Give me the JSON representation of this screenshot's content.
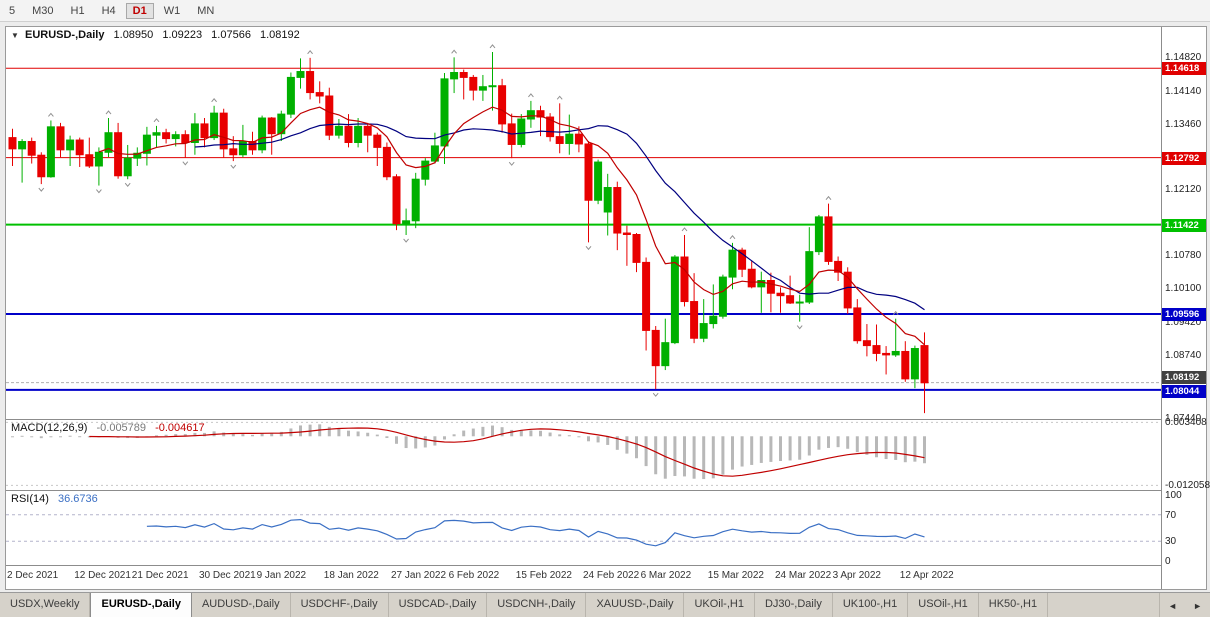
{
  "toolbar": {
    "timeframes": [
      {
        "label": "5",
        "active": false
      },
      {
        "label": "M30",
        "active": false
      },
      {
        "label": "H1",
        "active": false
      },
      {
        "label": "H4",
        "active": false
      },
      {
        "label": "D1",
        "active": true
      },
      {
        "label": "W1",
        "active": false
      },
      {
        "label": "MN",
        "active": false
      }
    ]
  },
  "chart_header": {
    "collapse_icon": "▼",
    "symbol": "EURUSD-,Daily",
    "open": "1.08950",
    "high": "1.09223",
    "low": "1.07566",
    "close": "1.08192"
  },
  "chart_data": {
    "type": "candlestick",
    "symbol": "EURUSD",
    "period": "Daily",
    "scale": {
      "p_max": 1.1546,
      "p_min": 1.0745
    },
    "colors": {
      "up": "#00b000",
      "down": "#e80000",
      "bg": "#ffffff",
      "ma_slow": "#000080",
      "ma_fast": "#c00000"
    },
    "y_ticks": [
      "1.14820",
      "1.14140",
      "1.13460",
      "1.12120",
      "1.10780",
      "1.10100",
      "1.09420",
      "1.08740",
      "1.07440"
    ],
    "levels": [
      {
        "price": 1.14618,
        "label": "1.14618",
        "color": "#e00000",
        "width": 1,
        "dy": 0
      },
      {
        "price": 1.12792,
        "label": "1.12792",
        "color": "#e00000",
        "width": 1,
        "dy": 0
      },
      {
        "price": 1.11422,
        "label": "1.11422",
        "color": "#00c000",
        "width": 2,
        "dy": 0
      },
      {
        "price": 1.09596,
        "label": "1.09596",
        "color": "#0000c8",
        "width": 2,
        "dy": 0
      },
      {
        "price": 1.08044,
        "label": "1.08044",
        "color": "#0000c8",
        "width": 2,
        "dy": 1
      }
    ],
    "current_price": {
      "price": 1.08192,
      "label": "1.08192",
      "bg": "#404040",
      "dy": -6
    },
    "moving_averages": [
      {
        "type": "sma",
        "period": 20,
        "color": "#000080"
      },
      {
        "type": "ema",
        "period": 10,
        "color": "#c00000"
      }
    ],
    "x_labels": [
      {
        "label": "2 Dec 2021",
        "index": 0
      },
      {
        "label": "12 Dec 2021",
        "index": 7
      },
      {
        "label": "21 Dec 2021",
        "index": 13
      },
      {
        "label": "30 Dec 2021",
        "index": 20
      },
      {
        "label": "9 Jan 2022",
        "index": 26
      },
      {
        "label": "18 Jan 2022",
        "index": 33
      },
      {
        "label": "27 Jan 2022",
        "index": 40
      },
      {
        "label": "6 Feb 2022",
        "index": 46
      },
      {
        "label": "15 Feb 2022",
        "index": 53
      },
      {
        "label": "24 Feb 2022",
        "index": 60
      },
      {
        "label": "6 Mar 2022",
        "index": 66
      },
      {
        "label": "15 Mar 2022",
        "index": 73
      },
      {
        "label": "24 Mar 2022",
        "index": 80
      },
      {
        "label": "3 Apr 2022",
        "index": 86
      },
      {
        "label": "12 Apr 2022",
        "index": 93
      }
    ],
    "candles": [
      [
        1.132,
        1.1338,
        1.1262,
        1.1297
      ],
      [
        1.1297,
        1.1317,
        1.1228,
        1.1312
      ],
      [
        1.1312,
        1.132,
        1.1267,
        1.1284
      ],
      [
        1.1284,
        1.129,
        1.1225,
        1.124
      ],
      [
        1.124,
        1.1355,
        1.1238,
        1.1342
      ],
      [
        1.1342,
        1.135,
        1.128,
        1.1295
      ],
      [
        1.1295,
        1.1324,
        1.1262,
        1.1315
      ],
      [
        1.1315,
        1.132,
        1.126,
        1.1285
      ],
      [
        1.1285,
        1.132,
        1.1258,
        1.1262
      ],
      [
        1.1262,
        1.13,
        1.1222,
        1.129
      ],
      [
        1.129,
        1.136,
        1.128,
        1.133
      ],
      [
        1.133,
        1.135,
        1.1236,
        1.1242
      ],
      [
        1.1242,
        1.1305,
        1.1235,
        1.1278
      ],
      [
        1.1278,
        1.13,
        1.1262,
        1.1288
      ],
      [
        1.1288,
        1.1342,
        1.1263,
        1.1325
      ],
      [
        1.1325,
        1.1344,
        1.13,
        1.133
      ],
      [
        1.133,
        1.1338,
        1.1308,
        1.1318
      ],
      [
        1.1318,
        1.1333,
        1.1302,
        1.1326
      ],
      [
        1.1326,
        1.1335,
        1.1279,
        1.131
      ],
      [
        1.131,
        1.137,
        1.1285,
        1.1348
      ],
      [
        1.1348,
        1.136,
        1.13,
        1.132
      ],
      [
        1.132,
        1.1385,
        1.1315,
        1.137
      ],
      [
        1.137,
        1.1379,
        1.1279,
        1.1297
      ],
      [
        1.1297,
        1.1323,
        1.1272,
        1.1285
      ],
      [
        1.1285,
        1.1346,
        1.128,
        1.1312
      ],
      [
        1.1312,
        1.1332,
        1.1285,
        1.1295
      ],
      [
        1.1295,
        1.1365,
        1.1288,
        1.136
      ],
      [
        1.136,
        1.1362,
        1.1285,
        1.1328
      ],
      [
        1.1328,
        1.1375,
        1.1313,
        1.1368
      ],
      [
        1.1368,
        1.1453,
        1.136,
        1.1443
      ],
      [
        1.1443,
        1.1482,
        1.142,
        1.1455
      ],
      [
        1.1455,
        1.1483,
        1.1398,
        1.1412
      ],
      [
        1.1412,
        1.1435,
        1.139,
        1.1405
      ],
      [
        1.1405,
        1.1422,
        1.1315,
        1.1325
      ],
      [
        1.1325,
        1.1358,
        1.1318,
        1.1343
      ],
      [
        1.1343,
        1.1368,
        1.13,
        1.131
      ],
      [
        1.131,
        1.136,
        1.13,
        1.1343
      ],
      [
        1.1343,
        1.135,
        1.129,
        1.1325
      ],
      [
        1.1325,
        1.133,
        1.1262,
        1.13
      ],
      [
        1.13,
        1.131,
        1.1233,
        1.124
      ],
      [
        1.124,
        1.1245,
        1.1131,
        1.1144
      ],
      [
        1.1144,
        1.1175,
        1.1121,
        1.115
      ],
      [
        1.115,
        1.1248,
        1.1135,
        1.1235
      ],
      [
        1.1235,
        1.1278,
        1.1222,
        1.1272
      ],
      [
        1.1272,
        1.133,
        1.1267,
        1.1303
      ],
      [
        1.1303,
        1.1452,
        1.1266,
        1.144
      ],
      [
        1.144,
        1.1484,
        1.1411,
        1.1453
      ],
      [
        1.1453,
        1.1459,
        1.1398,
        1.1443
      ],
      [
        1.1443,
        1.1448,
        1.1396,
        1.1417
      ],
      [
        1.1417,
        1.1448,
        1.1395,
        1.1424
      ],
      [
        1.1424,
        1.1495,
        1.1375,
        1.1426
      ],
      [
        1.1426,
        1.144,
        1.133,
        1.1348
      ],
      [
        1.1348,
        1.1369,
        1.1278,
        1.1306
      ],
      [
        1.1306,
        1.1368,
        1.13,
        1.1358
      ],
      [
        1.1358,
        1.1395,
        1.134,
        1.1375
      ],
      [
        1.1375,
        1.1385,
        1.1323,
        1.1362
      ],
      [
        1.1362,
        1.137,
        1.1312,
        1.1322
      ],
      [
        1.1322,
        1.139,
        1.1288,
        1.1308
      ],
      [
        1.1308,
        1.1367,
        1.1285,
        1.1327
      ],
      [
        1.1327,
        1.1343,
        1.129,
        1.1307
      ],
      [
        1.1307,
        1.1313,
        1.1106,
        1.1192
      ],
      [
        1.1192,
        1.1275,
        1.1184,
        1.127
      ],
      [
        1.1168,
        1.1246,
        1.112,
        1.1218
      ],
      [
        1.1218,
        1.123,
        1.109,
        1.1125
      ],
      [
        1.1125,
        1.114,
        1.1058,
        1.1122
      ],
      [
        1.1122,
        1.1125,
        1.1045,
        1.1065
      ],
      [
        1.1065,
        1.1075,
        1.0885,
        1.0926
      ],
      [
        1.0926,
        1.0935,
        1.0806,
        1.0854
      ],
      [
        1.0854,
        1.095,
        1.0845,
        1.0901
      ],
      [
        1.0901,
        1.108,
        1.0898,
        1.1076
      ],
      [
        1.1076,
        1.1121,
        1.0975,
        1.0985
      ],
      [
        1.0985,
        1.1043,
        1.09,
        1.091
      ],
      [
        1.091,
        1.099,
        1.0902,
        1.094
      ],
      [
        1.094,
        1.102,
        1.093,
        1.0955
      ],
      [
        1.0955,
        1.104,
        1.095,
        1.1035
      ],
      [
        1.1035,
        1.1105,
        1.101,
        1.109
      ],
      [
        1.109,
        1.1095,
        1.1035,
        1.1051
      ],
      [
        1.1051,
        1.1069,
        1.1012,
        1.1015
      ],
      [
        1.1015,
        1.1046,
        1.0962,
        1.1028
      ],
      [
        1.1028,
        1.1044,
        1.0963,
        1.1002
      ],
      [
        1.1002,
        1.1014,
        1.0962,
        1.0997
      ],
      [
        1.0997,
        1.1038,
        1.098,
        1.0982
      ],
      [
        1.0982,
        1.0999,
        1.0944,
        1.0984
      ],
      [
        1.0984,
        1.1137,
        1.098,
        1.1087
      ],
      [
        1.1087,
        1.1162,
        1.108,
        1.1158
      ],
      [
        1.1158,
        1.1185,
        1.106,
        1.1067
      ],
      [
        1.1067,
        1.1077,
        1.1027,
        1.1045
      ],
      [
        1.1045,
        1.1055,
        1.096,
        1.0972
      ],
      [
        1.0972,
        1.099,
        1.0899,
        1.0905
      ],
      [
        1.0905,
        1.0939,
        1.0873,
        1.0895
      ],
      [
        1.0895,
        1.0938,
        1.0863,
        1.0879
      ],
      [
        1.0879,
        1.0894,
        1.0836,
        1.0876
      ],
      [
        1.0876,
        1.095,
        1.0872,
        1.0883
      ],
      [
        1.0883,
        1.0904,
        1.0821,
        1.0827
      ],
      [
        1.0827,
        1.0895,
        1.0808,
        1.0889
      ],
      [
        1.0895,
        1.0922,
        1.0757,
        1.0819
      ]
    ]
  },
  "indicators": {
    "macd": {
      "title": "MACD(12,26,9)",
      "values": [
        "-0.005789",
        "-0.004617"
      ],
      "fast": 12,
      "slow": 26,
      "signal": 9,
      "hist_color": "#b8b8b8",
      "signal_color": "#c00000",
      "v_max": 0.004,
      "v_min": -0.0132,
      "ticks": [
        {
          "label": "0.003408",
          "value": 0.003408
        },
        {
          "label": "-0.012058",
          "value": -0.012058
        }
      ]
    },
    "rsi": {
      "title": "RSI(14)",
      "value": "36.6736",
      "period": 14,
      "line_color": "#3a6fc4",
      "levels": [
        70,
        30
      ],
      "ticks": [
        {
          "label": "100",
          "value": 100
        },
        {
          "label": "70",
          "value": 70
        },
        {
          "label": "30",
          "value": 30
        },
        {
          "label": "0",
          "value": 0
        }
      ]
    }
  },
  "tabbar": {
    "left_arrow": "◄",
    "right_arrow": "►",
    "tabs": [
      {
        "label": "USDX,Weekly",
        "active": false
      },
      {
        "label": "EURUSD-,Daily",
        "active": true
      },
      {
        "label": "AUDUSD-,Daily",
        "active": false
      },
      {
        "label": "USDCHF-,Daily",
        "active": false
      },
      {
        "label": "USDCAD-,Daily",
        "active": false
      },
      {
        "label": "USDCNH-,Daily",
        "active": false
      },
      {
        "label": "XAUUSD-,Daily",
        "active": false
      },
      {
        "label": "UKOil-,H1",
        "active": false
      },
      {
        "label": "DJ30-,Daily",
        "active": false
      },
      {
        "label": "UK100-,H1",
        "active": false
      },
      {
        "label": "USOil-,H1",
        "active": false
      },
      {
        "label": "HK50-,H1",
        "active": false
      }
    ]
  }
}
